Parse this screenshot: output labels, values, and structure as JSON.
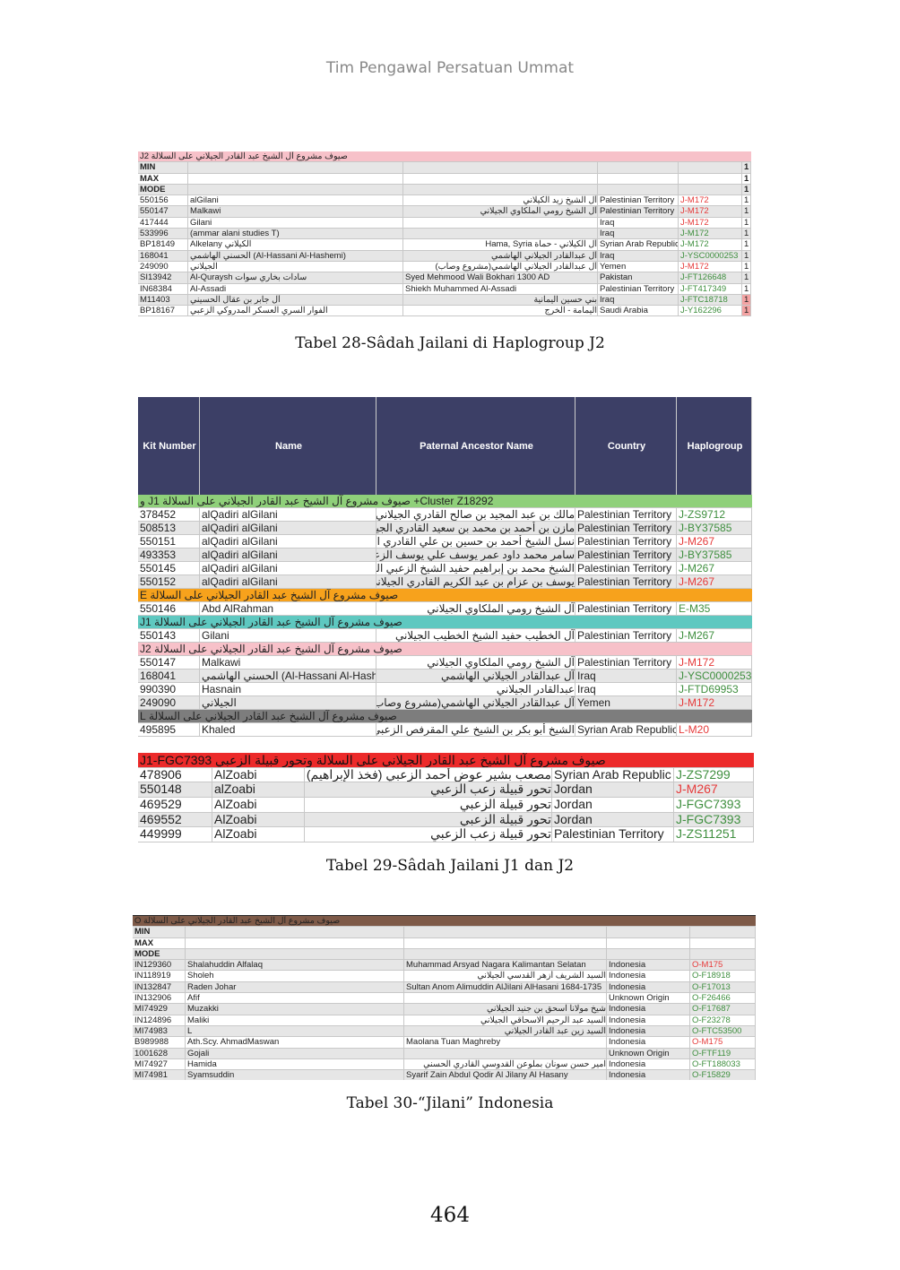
{
  "running_header": "Tim Pengawal Persatuan Ummat",
  "page_number": "464",
  "colors": {
    "red_haplogroup": "#e63a3a",
    "green_haplogroup": "#3f8f3f",
    "table29_header": "#3c3f66"
  },
  "table28": {
    "caption": "Tabel 28-Sâdah Jailani di Haplogroup J2",
    "band": {
      "label": "صيوف مشروع آل الشيخ عبد القادر الجيلاني على السلالة J2",
      "color": "#f7c1c9"
    },
    "stats": [
      "MIN",
      "MAX",
      "MODE"
    ],
    "rows": [
      {
        "kit": "550156",
        "name": "alGilani",
        "ancestor": "آل الشيخ زيد الكيلاني",
        "country": "Palestinian Territory",
        "hg": "J-M172",
        "hg_color": "red",
        "count": "1"
      },
      {
        "kit": "550147",
        "name": "Malkawi",
        "ancestor": "آل الشيخ رومي الملكاوي الجيلاني",
        "country": "Palestinian Territory",
        "hg": "J-M172",
        "hg_color": "red",
        "count": "1"
      },
      {
        "kit": "417444",
        "name": "Gilani",
        "ancestor": "",
        "country": "Iraq",
        "hg": "J-M172",
        "hg_color": "red",
        "count": "1"
      },
      {
        "kit": "533996",
        "name": "(ammar alani studies T)",
        "ancestor": "",
        "country": "Iraq",
        "hg": "J-M172",
        "hg_color": "green",
        "count": "1"
      },
      {
        "kit": "BP18149",
        "name": "Alkelany الكيلاني",
        "ancestor": "آل الكيلاني - حماة Hama, Syria",
        "country": "Syrian Arab Republic",
        "hg": "J-M172",
        "hg_color": "green",
        "count": "1"
      },
      {
        "kit": "168041",
        "name": "الحسني الهاشمي (Al-Hassani Al-Hashemi)",
        "ancestor": "آل عبدالقادر الجيلاني الهاشمي",
        "country": "Iraq",
        "hg": "J-YSC0000253",
        "hg_color": "green",
        "count": "1"
      },
      {
        "kit": "249090",
        "name": "الجيلاني",
        "ancestor": "آل عبدالقادر الجيلاني الهاشمي(مشروع وصاب)",
        "country": "Yemen",
        "hg": "J-M172",
        "hg_color": "red",
        "count": "1"
      },
      {
        "kit": "SI13942",
        "name": "Al-Quraysh سادات بخاري سوات",
        "ancestor": "Syed Mehmood Wali Bokhari 1300 AD",
        "country": "Pakistan",
        "hg": "J-FT126648",
        "hg_color": "green",
        "count": "1"
      },
      {
        "kit": "IN68384",
        "name": "Al-Assadi",
        "ancestor": "Shiekh Muhammed Al-Assadi",
        "country": "Palestinian Territory",
        "hg": "J-FT417349",
        "hg_color": "green",
        "count": "1"
      },
      {
        "kit": "M11403",
        "name": "آل جابر بن عقال الحسيني",
        "ancestor": "بني حسين اليمانية",
        "country": "Iraq",
        "hg": "J-FTC18718",
        "hg_color": "green",
        "count": "1"
      },
      {
        "kit": "BP18167",
        "name": "الفوار السري العسكر المدروكي الزعبي",
        "ancestor": "اليمامة - الخرج",
        "country": "Saudi Arabia",
        "hg": "J-Y162296",
        "hg_color": "green",
        "count": "1"
      }
    ]
  },
  "table29": {
    "caption": "Tabel 29-Sâdah Jailani J1 dan J2",
    "headers": [
      "Kit Number",
      "Name",
      "Paternal Ancestor Name",
      "Country",
      "Haplogroup"
    ],
    "groups": [
      {
        "label": "Cluster Z18292+ صيوف مشروع آل الشيخ عبد القادر الجيلاني على السلالة J1 و",
        "color": "#8fd07a",
        "rows": [
          {
            "kit": "378452",
            "name": "alQadiri alGilani",
            "ancestor": "مالك بن عبد المجيد بن صالح القادري الجيلاني",
            "country": "Palestinian Territory",
            "hg": "J-ZS9712",
            "hg_color": "green"
          },
          {
            "kit": "508513",
            "name": "alQadiri alGilani",
            "ancestor": "مازن بن أحمد بن محمد بن سعيد القادري الجيلاني",
            "country": "Palestinian Territory",
            "hg": "J-BY37585",
            "hg_color": "green"
          },
          {
            "kit": "550151",
            "name": "alQadiri alGilani",
            "ancestor": "نسل الشيخ أحمد بن حسين بن علي القادري الجيلاني",
            "country": "Palestinian Territory",
            "hg": "J-M267",
            "hg_color": "red"
          },
          {
            "kit": "493353",
            "name": "alQadiri alGilani",
            "ancestor": "سامر محمد داود عمر يوسف علي يوسف الزعبي الجيلاني",
            "country": "Palestinian Territory",
            "hg": "J-BY37585",
            "hg_color": "green"
          },
          {
            "kit": "550145",
            "name": "alQadiri alGilani",
            "ancestor": "الشيخ محمد بن إبراهيم حفيد الشيخ الزعبي الجيلاني",
            "country": "Palestinian Territory",
            "hg": "J-M267",
            "hg_color": "green"
          },
          {
            "kit": "550152",
            "name": "alQadiri alGilani",
            "ancestor": "يوسف بن عزام بن عبد الكريم القادري الجيلاني",
            "country": "Palestinian Territory",
            "hg": "J-M267",
            "hg_color": "red"
          }
        ]
      },
      {
        "label": "صيوف مشروع آل الشيخ عبد القادر الجيلاني على السلالة E",
        "color": "#f7a21c",
        "rows": [
          {
            "kit": "550146",
            "name": "Abd AlRahman",
            "ancestor": "آل الشيخ رومي الملكاوي الجيلاني",
            "country": "Palestinian Territory",
            "hg": "E-M35",
            "hg_color": "green"
          }
        ]
      },
      {
        "label": "صيوف مشروع آل الشيخ عبد القادر الجيلاني على السلالة J1",
        "color": "#5ec8c0",
        "rows": [
          {
            "kit": "550143",
            "name": "Gilani",
            "ancestor": "آل الخطيب حفيد الشيخ الخطيب الجيلاني",
            "country": "Palestinian Territory",
            "hg": "J-M267",
            "hg_color": "green"
          }
        ]
      },
      {
        "label": "صيوف مشروع آل الشيخ عبد القادر الجيلاني على السلالة J2",
        "color": "#f7c1c9",
        "rows": [
          {
            "kit": "550147",
            "name": "Malkawi",
            "ancestor": "آل الشيخ رومي الملكاوي الجيلاني",
            "country": "Palestinian Territory",
            "hg": "J-M172",
            "hg_color": "red"
          },
          {
            "kit": "168041",
            "name": "الحسني الهاشمي (Al-Hassani Al-Hashemi)",
            "ancestor": "آل عبدالقادر الجيلاني الهاشمي",
            "country": "Iraq",
            "hg": "J-YSC0000253",
            "hg_color": "green"
          },
          {
            "kit": "990390",
            "name": "Hasnain",
            "ancestor": "عبدالقادر الجيلاني",
            "country": "Iraq",
            "hg": "J-FTD69953",
            "hg_color": "green"
          },
          {
            "kit": "249090",
            "name": "الجيلاني",
            "ancestor": "آل عبدالقادر الجيلاني الهاشمي(مشروع وصاب)",
            "country": "Yemen",
            "hg": "J-M172",
            "hg_color": "red"
          }
        ]
      },
      {
        "label": "صيوف مشروع آل الشيخ عبد القادر الجيلاني على السلالة L",
        "color": "#7d7d7d",
        "rows": [
          {
            "kit": "495895",
            "name": "Khaled",
            "ancestor": "الشيخ أبو بكر بن الشيخ علي المقرفص الزعبي الجيلاني",
            "country": "Syrian Arab Republic",
            "hg": "L-M20",
            "hg_color": "red"
          }
        ]
      }
    ],
    "sub": {
      "label": "صيوف مشروع آل الشيخ عبد القادر الجيلاني على السلالة وتحور قبيلة الزعبي J1-FGC7393",
      "color": "#ec2a2a",
      "rows": [
        {
          "kit": "478906",
          "name": "AlZoabi",
          "ancestor": "مصعب بشير عوض أحمد الزعبي (فخذ الإبراهيم) المسيفرة",
          "country": "Syrian Arab Republic",
          "hg": "J-ZS7299",
          "hg_color": "green"
        },
        {
          "kit": "550148",
          "name": "alZoabi",
          "ancestor": "تحور قبيلة زعب الزعبي",
          "country": "Jordan",
          "hg": "J-M267",
          "hg_color": "red"
        },
        {
          "kit": "469529",
          "name": "AlZoabi",
          "ancestor": "تحور قبيلة الزعبي",
          "country": "Jordan",
          "hg": "J-FGC7393",
          "hg_color": "green"
        },
        {
          "kit": "469552",
          "name": "AlZoabi",
          "ancestor": "تحور قبيلة الزعبي",
          "country": "Jordan",
          "hg": "J-FGC7393",
          "hg_color": "green"
        },
        {
          "kit": "449999",
          "name": "AlZoabi",
          "ancestor": "تحور قبيلة زعب الزعبي",
          "country": "Palestinian Territory",
          "hg": "J-ZS11251",
          "hg_color": "green"
        }
      ]
    }
  },
  "table30": {
    "caption": "Tabel 30-“Jilani” Indonesia",
    "band": {
      "label": "صيوف مشروع آل الشيخ عبد القادر الجيلاني على السلالة O",
      "color": "#7e5a48"
    },
    "stats": [
      "MIN",
      "MAX",
      "MODE"
    ],
    "rows": [
      {
        "kit": "IN129360",
        "name": "Shalahuddin Alfalaq",
        "ancestor": "Muhammad Arsyad Nagara Kalimantan Selatan",
        "country": "Indonesia",
        "hg": "O-M175",
        "hg_color": "red"
      },
      {
        "kit": "IN118919",
        "name": "Sholeh",
        "ancestor": "السيد الشريف أزهر القدسي الجيلاني",
        "country": "Indonesia",
        "hg": "O-F18918",
        "hg_color": "green"
      },
      {
        "kit": "IN132847",
        "name": "Raden Johar",
        "ancestor": "Sultan Anom Alimuddin AlJilani AlHasani 1684-1735",
        "country": "Indonesia",
        "hg": "O-F17013",
        "hg_color": "green"
      },
      {
        "kit": "IN132906",
        "name": "Afif",
        "ancestor": "",
        "country": "Unknown Origin",
        "hg": "O-F26466",
        "hg_color": "green"
      },
      {
        "kit": "MI74929",
        "name": "Muzakki",
        "ancestor": "شيخ مولانا اسحق بن جنيد الجيلاني",
        "country": "Indonesia",
        "hg": "O-F17687",
        "hg_color": "green"
      },
      {
        "kit": "IN124896",
        "name": "Maliki",
        "ancestor": "السيد عبد الرحيم الاسحاقي الجيلاني",
        "country": "Indonesia",
        "hg": "O-F23278",
        "hg_color": "green"
      },
      {
        "kit": "MI74983",
        "name": "L",
        "ancestor": "السيد زين عبد القادر الجيلاني",
        "country": "Indonesia",
        "hg": "O-FTC53500",
        "hg_color": "green"
      },
      {
        "kit": "B989988",
        "name": "Ath.Scy. AhmadMaswan",
        "ancestor": "Maolana Tuan Maghreby",
        "country": "Indonesia",
        "hg": "O-M175",
        "hg_color": "red"
      },
      {
        "kit": "1001628",
        "name": "Gojali",
        "ancestor": "",
        "country": "Unknown Origin",
        "hg": "O-FTF119",
        "hg_color": "green"
      },
      {
        "kit": "MI74927",
        "name": "Hamida",
        "ancestor": "امير حسن سونان بملوعن القدوسي القادري الحسني",
        "country": "Indonesia",
        "hg": "O-FT188033",
        "hg_color": "green"
      },
      {
        "kit": "MI74981",
        "name": "Syamsuddin",
        "ancestor": "Syarif Zain Abdul Qodir Al Jilany Al Hasany",
        "country": "Indonesia",
        "hg": "O-F15829",
        "hg_color": "green"
      }
    ]
  }
}
